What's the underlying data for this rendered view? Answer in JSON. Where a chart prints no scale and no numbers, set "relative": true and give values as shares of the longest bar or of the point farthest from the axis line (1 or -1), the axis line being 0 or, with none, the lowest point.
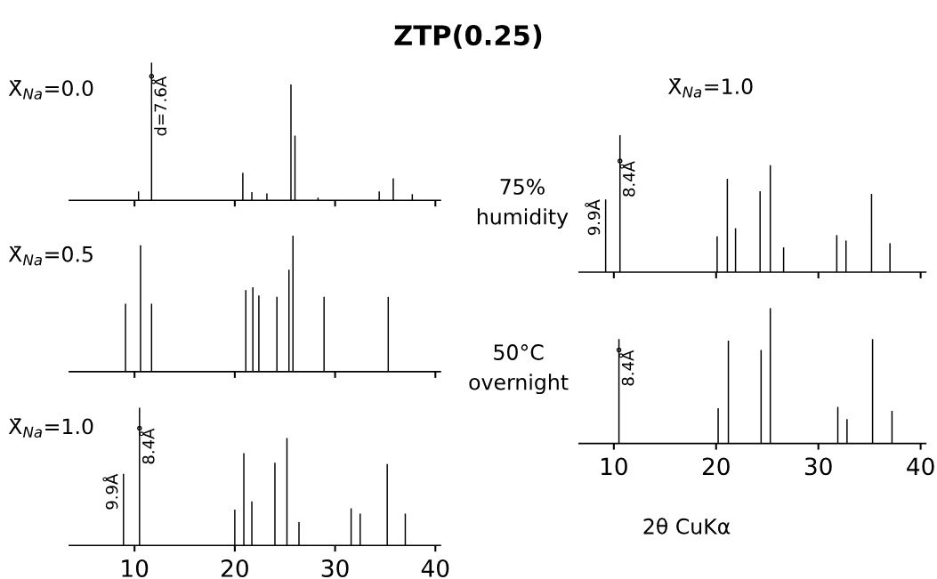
{
  "chart_data": [
    {
      "type": "bar",
      "title": "ZTP(0.25)",
      "ylabel": "X̄$_{Na}$=0.0",
      "relative": true,
      "color": "#000000",
      "xlim": [
        3.5,
        40.5
      ],
      "xticks": [
        10,
        20,
        30,
        40
      ],
      "tick_labels": false,
      "x": [
        10.4,
        11.7,
        20.8,
        21.7,
        23.2,
        25.6,
        26.0,
        28.3,
        34.4,
        35.8,
        37.7
      ],
      "values": [
        0.065,
        1,
        0.2,
        0.06,
        0.05,
        0.84,
        0.47,
        0.02,
        0.065,
        0.16,
        0.045
      ],
      "annotations": [
        {
          "text": "d=7.6Å",
          "x": 11.7,
          "y": 0.9
        }
      ]
    },
    {
      "type": "bar",
      "ylabel": "X̄$_{Na}$=0.5",
      "relative": true,
      "color": "#000000",
      "xlim": [
        3.5,
        40.5
      ],
      "xticks": [
        10,
        20,
        30,
        40
      ],
      "tick_labels": false,
      "x": [
        9.1,
        10.6,
        11.7,
        21.1,
        21.8,
        22.4,
        24.2,
        25.4,
        25.8,
        28.9,
        35.3
      ],
      "values": [
        0.5,
        0.93,
        0.5,
        0.6,
        0.62,
        0.56,
        0.55,
        0.75,
        1,
        0.55,
        0.55
      ]
    },
    {
      "type": "bar",
      "ylabel": "X̄$_{Na}$=1.0",
      "relative": true,
      "color": "#000000",
      "xlim": [
        3.5,
        40.5
      ],
      "xticks": [
        10,
        20,
        30,
        40
      ],
      "x": [
        8.9,
        10.5,
        20.0,
        20.9,
        21.7,
        24.0,
        25.2,
        26.4,
        31.6,
        32.5,
        35.2,
        37.0
      ],
      "values": [
        0.52,
        1,
        0.26,
        0.67,
        0.32,
        0.6,
        0.78,
        0.17,
        0.27,
        0.23,
        0.59,
        0.23
      ],
      "annotations": [
        {
          "text": "9.9Å",
          "x": 8.9,
          "y": 0.52
        },
        {
          "text": "8.4Å",
          "x": 10.5,
          "y": 0.85
        }
      ]
    },
    {
      "type": "bar",
      "subtitle": "X̄$_{Na}$=1.0",
      "ylabel": "75%\nhumidity",
      "relative": true,
      "color": "#000000",
      "xlim": [
        6.6,
        40.5
      ],
      "xticks": [
        10,
        20,
        30,
        40
      ],
      "tick_labels": false,
      "x": [
        9.2,
        10.6,
        20.1,
        21.1,
        21.9,
        24.3,
        25.3,
        26.6,
        31.8,
        32.7,
        35.2,
        37.0
      ],
      "values": [
        0.53,
        1,
        0.26,
        0.68,
        0.32,
        0.59,
        0.78,
        0.18,
        0.27,
        0.23,
        0.57,
        0.21
      ],
      "annotations": [
        {
          "text": "9.9Å",
          "x": 9.2,
          "y": 0.53
        },
        {
          "text": "8.4Å",
          "x": 10.6,
          "y": 0.81
        }
      ]
    },
    {
      "type": "bar",
      "ylabel": "50°C\novernight",
      "xlabel": "2θ CuKα",
      "relative": true,
      "color": "#000000",
      "xlim": [
        6.6,
        40.5
      ],
      "xticks": [
        10,
        20,
        30,
        40
      ],
      "x": [
        10.5,
        20.2,
        21.2,
        24.4,
        25.3,
        31.9,
        32.8,
        35.3,
        37.2
      ],
      "values": [
        0.77,
        0.26,
        0.76,
        0.69,
        1,
        0.27,
        0.18,
        0.77,
        0.24
      ],
      "annotations": [
        {
          "text": "8.4Å",
          "x": 10.5,
          "y": 0.69
        }
      ]
    }
  ]
}
